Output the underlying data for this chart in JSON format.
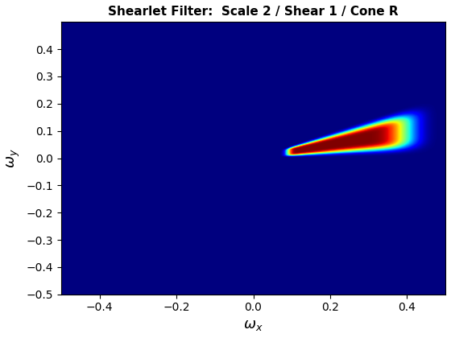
{
  "title": "Shearlet Filter:  Scale 2 / Shear 1 / Cone R",
  "xlabel": "$\\omega_x$",
  "ylabel": "$\\omega_y$",
  "xlim": [
    -0.5,
    0.5
  ],
  "ylim": [
    -0.5,
    0.5
  ],
  "xticks": [
    -0.4,
    -0.2,
    0.0,
    0.2,
    0.4
  ],
  "yticks": [
    -0.5,
    -0.4,
    -0.3,
    -0.2,
    -0.1,
    0.0,
    0.1,
    0.2,
    0.3,
    0.4
  ],
  "scale": 2,
  "shear": 1,
  "N": 512,
  "cmap": "jet",
  "figsize": [
    5.6,
    4.2
  ],
  "dpi": 100,
  "title_fontsize": 11,
  "label_fontsize": 13
}
